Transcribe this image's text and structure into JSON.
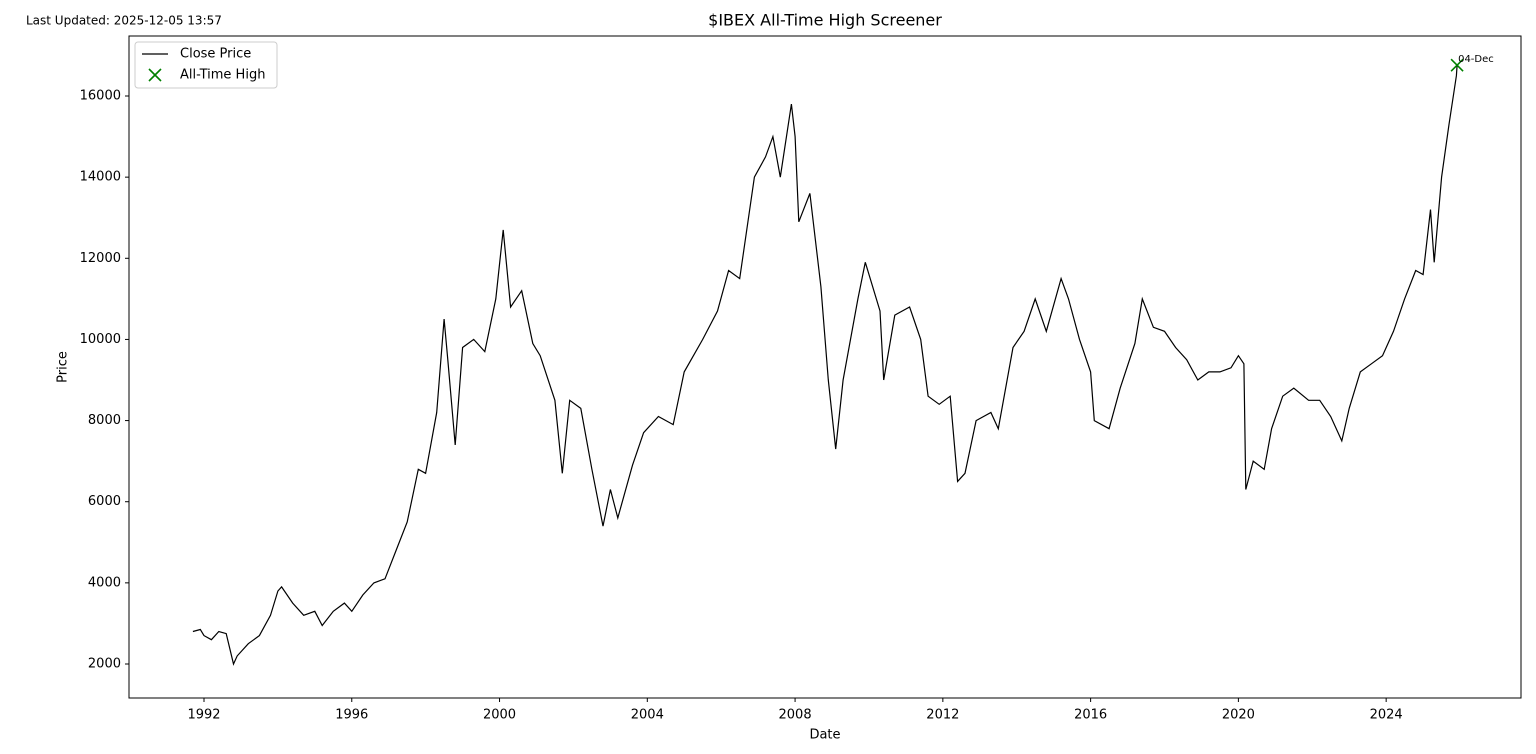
{
  "last_updated": "Last Updated: 2025-12-05 13:57",
  "chart_data": {
    "type": "line",
    "title": "$IBEX All-Time High Screener",
    "x_label": "Date",
    "y_label": "Price",
    "x": [
      1991.7,
      1991.9,
      1992.0,
      1992.2,
      1992.4,
      1992.6,
      1992.8,
      1992.9,
      1993.2,
      1993.5,
      1993.8,
      1994.0,
      1994.1,
      1994.4,
      1994.7,
      1995.0,
      1995.2,
      1995.5,
      1995.8,
      1996.0,
      1996.3,
      1996.6,
      1996.9,
      1997.2,
      1997.5,
      1997.8,
      1998.0,
      1998.3,
      1998.5,
      1998.6,
      1998.8,
      1999.0,
      1999.3,
      1999.6,
      1999.9,
      2000.1,
      2000.3,
      2000.6,
      2000.9,
      2001.1,
      2001.5,
      2001.7,
      2001.9,
      2002.2,
      2002.5,
      2002.8,
      2003.0,
      2003.2,
      2003.6,
      2003.9,
      2004.3,
      2004.7,
      2005.0,
      2005.5,
      2005.9,
      2006.2,
      2006.5,
      2006.9,
      2007.2,
      2007.4,
      2007.6,
      2007.9,
      2008.0,
      2008.1,
      2008.4,
      2008.7,
      2008.9,
      2009.1,
      2009.3,
      2009.7,
      2009.9,
      2010.3,
      2010.4,
      2010.7,
      2011.1,
      2011.4,
      2011.6,
      2011.9,
      2012.2,
      2012.4,
      2012.6,
      2012.9,
      2013.3,
      2013.5,
      2013.9,
      2014.2,
      2014.5,
      2014.8,
      2015.2,
      2015.4,
      2015.7,
      2016.0,
      2016.1,
      2016.5,
      2016.8,
      2017.2,
      2017.4,
      2017.7,
      2018.0,
      2018.3,
      2018.6,
      2018.9,
      2019.2,
      2019.5,
      2019.8,
      2020.0,
      2020.15,
      2020.2,
      2020.4,
      2020.7,
      2020.9,
      2021.2,
      2021.5,
      2021.9,
      2022.2,
      2022.5,
      2022.8,
      2023.0,
      2023.3,
      2023.6,
      2023.9,
      2024.2,
      2024.5,
      2024.8,
      2025.0,
      2025.2,
      2025.3,
      2025.5,
      2025.7,
      2025.9,
      2025.92
    ],
    "series": [
      {
        "name": "Close Price",
        "color": "#000000",
        "values": [
          2800,
          2850,
          2700,
          2600,
          2800,
          2750,
          2000,
          2200,
          2500,
          2700,
          3200,
          3800,
          3900,
          3500,
          3200,
          3300,
          2950,
          3300,
          3500,
          3300,
          3700,
          4000,
          4100,
          4800,
          5500,
          6800,
          6700,
          8200,
          10500,
          9500,
          7400,
          9800,
          10000,
          9700,
          11000,
          12700,
          10800,
          11200,
          9900,
          9600,
          8500,
          6700,
          8500,
          8300,
          6800,
          5400,
          6300,
          5600,
          6900,
          7700,
          8100,
          7900,
          9200,
          10000,
          10700,
          11700,
          11500,
          14000,
          14500,
          15000,
          14000,
          15800,
          15000,
          12900,
          13600,
          11300,
          9000,
          7300,
          9000,
          11000,
          11900,
          10700,
          9000,
          10600,
          10800,
          10000,
          8600,
          8400,
          8600,
          6500,
          6700,
          8000,
          8200,
          7800,
          9800,
          10200,
          11000,
          10200,
          11500,
          11000,
          10000,
          9200,
          8000,
          7800,
          8800,
          9900,
          11000,
          10300,
          10200,
          9800,
          9500,
          9000,
          9200,
          9200,
          9300,
          9600,
          9400,
          6300,
          7000,
          6800,
          7800,
          8600,
          8800,
          8500,
          8500,
          8100,
          7500,
          8300,
          9200,
          9400,
          9600,
          10200,
          11000,
          11700,
          11600,
          13200,
          11900,
          14000,
          15300,
          16500,
          16760
        ]
      }
    ],
    "all_time_high": {
      "name": "All-Time High",
      "color": "#008000",
      "x": 2025.92,
      "value": 16760,
      "label": "04-Dec"
    },
    "xlim": [
      1989.97,
      2027.65
    ],
    "xticks": [
      1992,
      1996,
      2000,
      2004,
      2008,
      2012,
      2016,
      2020,
      2024
    ],
    "ylim": [
      1162,
      17479
    ],
    "yticks": [
      2000,
      4000,
      6000,
      8000,
      10000,
      12000,
      14000,
      16000
    ],
    "grid": false,
    "legend": "upper left"
  }
}
